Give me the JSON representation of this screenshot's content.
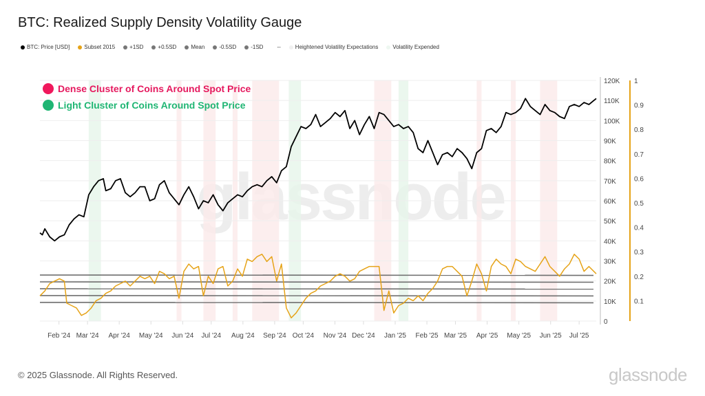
{
  "header": {
    "title": "BTC: Realized Supply Density Volatility Gauge"
  },
  "legend": [
    {
      "label": "BTC: Price [USD]",
      "color": "#000000"
    },
    {
      "label": "Subset 2015",
      "color": "#e6a317"
    },
    {
      "label": "+1SD",
      "color": "#777777"
    },
    {
      "label": "+0.5SD",
      "color": "#777777"
    },
    {
      "label": "Mean",
      "color": "#777777"
    },
    {
      "label": "-0.5SD",
      "color": "#777777"
    },
    {
      "label": "-1SD",
      "color": "#777777"
    },
    {
      "label": "--",
      "color": null
    },
    {
      "label": "Heightened Volatility Expectations",
      "color": "#f3f3f3"
    },
    {
      "label": "Volatility Expended",
      "color": "#eef7f1"
    }
  ],
  "annotations": {
    "dense": {
      "label": "Dense Cluster of Coins Around Spot Price",
      "color": "#f0185c"
    },
    "light": {
      "label": "Light Cluster of Coins Around Spot Price",
      "color": "#1fb573"
    }
  },
  "footer": {
    "copyright": "© 2025 Glassnode. All Rights Reserved.",
    "brand": "glassnode",
    "watermark": "glassnode"
  },
  "chart_data": {
    "type": "line",
    "title": "BTC: Realized Supply Density Volatility Gauge",
    "xlabel": "",
    "ylabel": "",
    "x_ticks": [
      "Feb '24",
      "Mar '24",
      "Apr '24",
      "May '24",
      "Jun '24",
      "Jul '24",
      "Aug '24",
      "Sep '24",
      "Oct '24",
      "Nov '24",
      "Dec '24",
      "Jan '25",
      "Feb '25",
      "Mar '25",
      "Apr '25",
      "May '25",
      "Jun '25",
      "Jul '25"
    ],
    "x_range": [
      "2024-01-10",
      "2025-07-10"
    ],
    "y_left": {
      "ticks": [
        "0",
        "10K",
        "20K",
        "30K",
        "40K",
        "50K",
        "60K",
        "70K",
        "80K",
        "90K",
        "100K",
        "110K",
        "120K"
      ],
      "range": [
        0,
        120000
      ]
    },
    "y_right": {
      "ticks": [
        "0.1",
        "0.2",
        "0.3",
        "0.4",
        "0.5",
        "0.6",
        "0.7",
        "0.8",
        "0.9",
        "1"
      ],
      "range": [
        0,
        1
      ]
    },
    "grid": true,
    "legend_position": "top-left",
    "series": [
      {
        "name": "BTC: Price [USD]",
        "axis": "left",
        "color": "#000000",
        "points": [
          [
            0,
            44000
          ],
          [
            0.01,
            43000
          ],
          [
            0.02,
            46000
          ],
          [
            0.04,
            42000
          ],
          [
            0.06,
            40000
          ],
          [
            0.08,
            42000
          ],
          [
            0.1,
            43000
          ],
          [
            0.12,
            48000
          ],
          [
            0.14,
            51000
          ],
          [
            0.16,
            53000
          ],
          [
            0.18,
            52000
          ],
          [
            0.2,
            63000
          ],
          [
            0.22,
            67000
          ],
          [
            0.24,
            70000
          ],
          [
            0.26,
            71000
          ],
          [
            0.27,
            65000
          ],
          [
            0.29,
            66000
          ],
          [
            0.31,
            70000
          ],
          [
            0.33,
            71000
          ],
          [
            0.35,
            64000
          ],
          [
            0.37,
            62000
          ],
          [
            0.39,
            64000
          ],
          [
            0.41,
            67000
          ],
          [
            0.43,
            67000
          ],
          [
            0.45,
            60000
          ],
          [
            0.47,
            61000
          ],
          [
            0.49,
            68000
          ],
          [
            0.51,
            70000
          ],
          [
            0.53,
            64000
          ],
          [
            0.55,
            61000
          ],
          [
            0.57,
            58000
          ],
          [
            0.59,
            63000
          ],
          [
            0.61,
            67000
          ],
          [
            0.63,
            62000
          ],
          [
            0.65,
            56000
          ],
          [
            0.67,
            60000
          ],
          [
            0.69,
            59000
          ],
          [
            0.71,
            63000
          ],
          [
            0.73,
            58000
          ],
          [
            0.75,
            55000
          ],
          [
            0.77,
            59000
          ],
          [
            0.79,
            61000
          ],
          [
            0.81,
            63000
          ],
          [
            0.83,
            62000
          ],
          [
            0.85,
            65000
          ],
          [
            0.87,
            67000
          ],
          [
            0.89,
            68000
          ],
          [
            0.91,
            67000
          ],
          [
            0.93,
            70000
          ],
          [
            0.95,
            72000
          ],
          [
            0.97,
            69000
          ],
          [
            0.99,
            75000
          ],
          [
            1.01,
            77000
          ],
          [
            1.03,
            87000
          ],
          [
            1.05,
            92000
          ],
          [
            1.07,
            97000
          ],
          [
            1.09,
            96000
          ],
          [
            1.11,
            98000
          ],
          [
            1.13,
            103000
          ],
          [
            1.15,
            97000
          ],
          [
            1.17,
            99000
          ],
          [
            1.19,
            101000
          ],
          [
            1.21,
            104000
          ],
          [
            1.23,
            102000
          ],
          [
            1.25,
            105000
          ],
          [
            1.27,
            96000
          ],
          [
            1.29,
            100000
          ],
          [
            1.31,
            93000
          ],
          [
            1.33,
            98000
          ],
          [
            1.35,
            102000
          ],
          [
            1.37,
            96000
          ],
          [
            1.39,
            104000
          ],
          [
            1.41,
            103000
          ],
          [
            1.43,
            100000
          ],
          [
            1.45,
            97000
          ],
          [
            1.47,
            98000
          ],
          [
            1.49,
            96000
          ],
          [
            1.51,
            97000
          ],
          [
            1.53,
            94000
          ],
          [
            1.55,
            86000
          ],
          [
            1.57,
            84000
          ],
          [
            1.59,
            90000
          ],
          [
            1.61,
            84000
          ],
          [
            1.63,
            78000
          ],
          [
            1.65,
            83000
          ],
          [
            1.67,
            84000
          ],
          [
            1.69,
            82000
          ],
          [
            1.71,
            86000
          ],
          [
            1.73,
            84000
          ],
          [
            1.75,
            81000
          ],
          [
            1.77,
            76000
          ],
          [
            1.79,
            84000
          ],
          [
            1.81,
            86000
          ],
          [
            1.83,
            95000
          ],
          [
            1.85,
            96000
          ],
          [
            1.87,
            94000
          ],
          [
            1.89,
            97000
          ],
          [
            1.91,
            104000
          ],
          [
            1.93,
            103000
          ],
          [
            1.95,
            104000
          ],
          [
            1.97,
            106000
          ],
          [
            1.99,
            111000
          ],
          [
            2.01,
            107000
          ],
          [
            2.03,
            105000
          ],
          [
            2.05,
            103000
          ],
          [
            2.07,
            108000
          ],
          [
            2.09,
            105000
          ],
          [
            2.11,
            104000
          ],
          [
            2.13,
            102000
          ],
          [
            2.15,
            101000
          ],
          [
            2.17,
            107000
          ],
          [
            2.19,
            108000
          ],
          [
            2.21,
            107000
          ],
          [
            2.23,
            109000
          ],
          [
            2.25,
            108000
          ],
          [
            2.27,
            110000
          ],
          [
            2.28,
            111000
          ]
        ]
      },
      {
        "name": "Subset 2015",
        "axis": "right",
        "color": "#e6a317",
        "points": [
          [
            0,
            0.12
          ],
          [
            0.02,
            0.14
          ],
          [
            0.04,
            0.17
          ],
          [
            0.06,
            0.18
          ],
          [
            0.08,
            0.19
          ],
          [
            0.1,
            0.18
          ],
          [
            0.11,
            0.09
          ],
          [
            0.13,
            0.08
          ],
          [
            0.15,
            0.07
          ],
          [
            0.17,
            0.04
          ],
          [
            0.19,
            0.05
          ],
          [
            0.21,
            0.07
          ],
          [
            0.23,
            0.1
          ],
          [
            0.25,
            0.11
          ],
          [
            0.27,
            0.13
          ],
          [
            0.29,
            0.14
          ],
          [
            0.31,
            0.16
          ],
          [
            0.33,
            0.17
          ],
          [
            0.35,
            0.18
          ],
          [
            0.37,
            0.16
          ],
          [
            0.39,
            0.18
          ],
          [
            0.41,
            0.2
          ],
          [
            0.43,
            0.19
          ],
          [
            0.45,
            0.2
          ],
          [
            0.47,
            0.17
          ],
          [
            0.49,
            0.22
          ],
          [
            0.51,
            0.21
          ],
          [
            0.53,
            0.19
          ],
          [
            0.55,
            0.2
          ],
          [
            0.57,
            0.11
          ],
          [
            0.59,
            0.22
          ],
          [
            0.61,
            0.25
          ],
          [
            0.63,
            0.23
          ],
          [
            0.65,
            0.24
          ],
          [
            0.67,
            0.12
          ],
          [
            0.69,
            0.2
          ],
          [
            0.71,
            0.17
          ],
          [
            0.73,
            0.23
          ],
          [
            0.75,
            0.24
          ],
          [
            0.77,
            0.16
          ],
          [
            0.79,
            0.18
          ],
          [
            0.81,
            0.23
          ],
          [
            0.83,
            0.2
          ],
          [
            0.85,
            0.27
          ],
          [
            0.87,
            0.26
          ],
          [
            0.89,
            0.28
          ],
          [
            0.91,
            0.29
          ],
          [
            0.93,
            0.26
          ],
          [
            0.95,
            0.28
          ],
          [
            0.97,
            0.18
          ],
          [
            0.99,
            0.25
          ],
          [
            1.01,
            0.07
          ],
          [
            1.03,
            0.03
          ],
          [
            1.05,
            0.05
          ],
          [
            1.07,
            0.08
          ],
          [
            1.09,
            0.11
          ],
          [
            1.11,
            0.13
          ],
          [
            1.13,
            0.14
          ],
          [
            1.15,
            0.16
          ],
          [
            1.17,
            0.17
          ],
          [
            1.19,
            0.18
          ],
          [
            1.21,
            0.2
          ],
          [
            1.23,
            0.21
          ],
          [
            1.25,
            0.2
          ],
          [
            1.27,
            0.18
          ],
          [
            1.29,
            0.19
          ],
          [
            1.31,
            0.22
          ],
          [
            1.33,
            0.23
          ],
          [
            1.35,
            0.24
          ],
          [
            1.37,
            0.24
          ],
          [
            1.39,
            0.24
          ],
          [
            1.41,
            0.06
          ],
          [
            1.43,
            0.14
          ],
          [
            1.45,
            0.05
          ],
          [
            1.47,
            0.08
          ],
          [
            1.49,
            0.09
          ],
          [
            1.51,
            0.11
          ],
          [
            1.53,
            0.1
          ],
          [
            1.55,
            0.12
          ],
          [
            1.57,
            0.1
          ],
          [
            1.59,
            0.13
          ],
          [
            1.61,
            0.15
          ],
          [
            1.63,
            0.18
          ],
          [
            1.65,
            0.23
          ],
          [
            1.67,
            0.24
          ],
          [
            1.69,
            0.24
          ],
          [
            1.71,
            0.22
          ],
          [
            1.73,
            0.2
          ],
          [
            1.75,
            0.12
          ],
          [
            1.77,
            0.18
          ],
          [
            1.79,
            0.25
          ],
          [
            1.81,
            0.21
          ],
          [
            1.83,
            0.14
          ],
          [
            1.85,
            0.24
          ],
          [
            1.87,
            0.27
          ],
          [
            1.89,
            0.25
          ],
          [
            1.91,
            0.24
          ],
          [
            1.93,
            0.21
          ],
          [
            1.95,
            0.27
          ],
          [
            1.97,
            0.26
          ],
          [
            1.99,
            0.24
          ],
          [
            2.01,
            0.23
          ],
          [
            2.03,
            0.22
          ],
          [
            2.05,
            0.25
          ],
          [
            2.07,
            0.28
          ],
          [
            2.09,
            0.24
          ],
          [
            2.11,
            0.22
          ],
          [
            2.13,
            0.2
          ],
          [
            2.15,
            0.23
          ],
          [
            2.17,
            0.25
          ],
          [
            2.19,
            0.29
          ],
          [
            2.21,
            0.27
          ],
          [
            2.23,
            0.22
          ],
          [
            2.25,
            0.24
          ],
          [
            2.27,
            0.22
          ],
          [
            2.28,
            0.21
          ]
        ]
      }
    ],
    "bands": {
      "+1SD": 0.205,
      "+0.5SD": 0.177,
      "Mean": 0.149,
      "-0.5SD": 0.121,
      "-1SD": 0.093
    },
    "shaded_regions": [
      {
        "type": "Volatility Expended",
        "color": "#e6f5ea",
        "from": 0.2,
        "to": 0.25
      },
      {
        "type": "Heightened Volatility Expectations",
        "color": "#fbeaea",
        "from": 0.56,
        "to": 0.58
      },
      {
        "type": "Heightened Volatility Expectations",
        "color": "#fbeaea",
        "from": 0.67,
        "to": 0.72
      },
      {
        "type": "Heightened Volatility Expectations",
        "color": "#fbeaea",
        "from": 0.79,
        "to": 0.81
      },
      {
        "type": "Heightened Volatility Expectations",
        "color": "#fbeaea",
        "from": 0.87,
        "to": 0.98
      },
      {
        "type": "Volatility Expended",
        "color": "#e6f5ea",
        "from": 1.02,
        "to": 1.07
      },
      {
        "type": "Heightened Volatility Expectations",
        "color": "#fbeaea",
        "from": 1.37,
        "to": 1.44
      },
      {
        "type": "Volatility Expended",
        "color": "#e6f5ea",
        "from": 1.47,
        "to": 1.51
      },
      {
        "type": "Heightened Volatility Expectations",
        "color": "#fbeaea",
        "from": 1.79,
        "to": 1.81
      },
      {
        "type": "Heightened Volatility Expectations",
        "color": "#fbeaea",
        "from": 1.93,
        "to": 1.95
      },
      {
        "type": "Heightened Volatility Expectations",
        "color": "#fbeaea",
        "from": 2.05,
        "to": 2.12
      }
    ]
  }
}
